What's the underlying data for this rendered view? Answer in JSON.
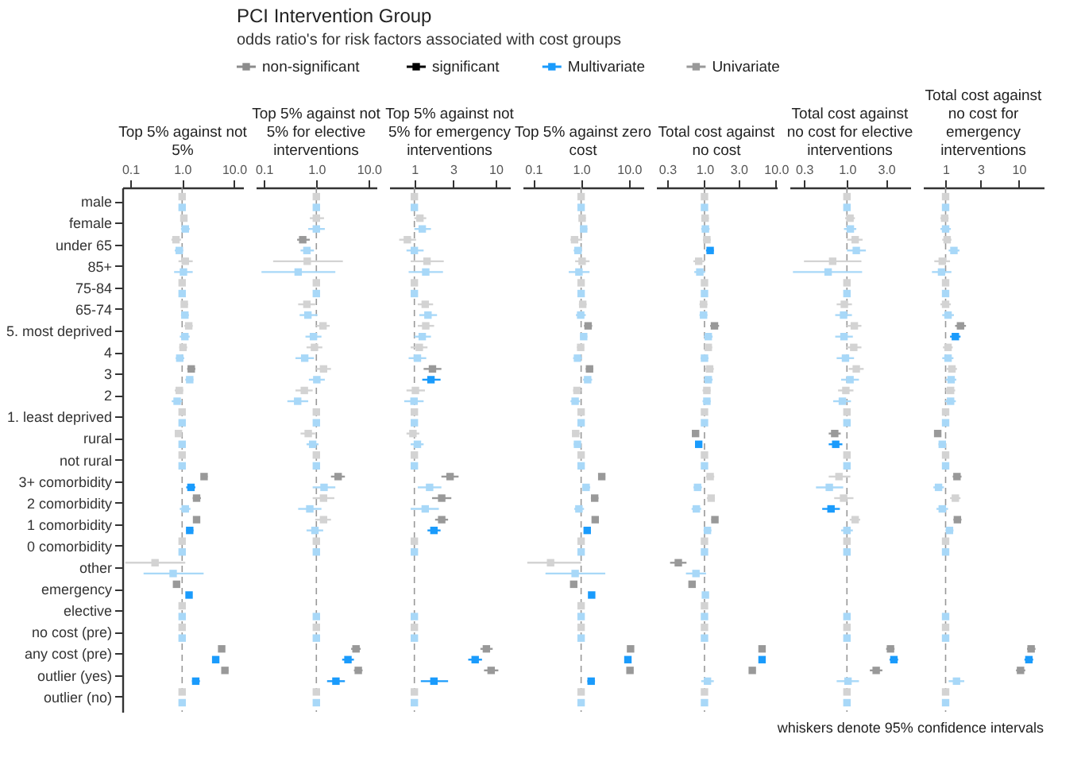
{
  "chart_data": [
    {
      "type": "other",
      "title": "PCI Intervention Group",
      "subtitle": "odds ratio's for risk factors associated with cost groups",
      "annotations": [
        "non-significant",
        "significant"
      ]
    },
    {
      "type": "scatter",
      "title": "Top 5% against not 5%",
      "orientation": "horizontal",
      "log": "x",
      "marker": "square",
      "legend": "top",
      "categories": [
        "male",
        "female",
        "under 65",
        "85+",
        "75-84",
        "65-74",
        "5. most deprived",
        "4",
        "3",
        "2",
        "1. least deprived",
        "rural",
        "not rural",
        "3+ comorbidity",
        "2 comorbidity",
        "1 comorbidity",
        "0 comorbidity",
        "other",
        "emergency",
        "elective",
        "no cost (pre)",
        "any cost (pre)",
        "outlier  (yes)",
        "outlier  (no)"
      ],
      "xlim": [
        0.07,
        15
      ],
      "xticks": [
        {
          "value": 0.1,
          "label": "0.1"
        },
        {
          "value": 1,
          "label": "1.0"
        },
        {
          "value": 10,
          "label": "10.0"
        }
      ],
      "ref_lines": [
        {
          "axis": "x",
          "value": 1,
          "color": "#999999",
          "line_style": "dashed"
        }
      ],
      "series": [
        {
          "name": "Multivariate",
          "color": "#1a9bfc",
          "values": [
            1,
            1.15,
            0.88,
            1.06,
            1,
            1.13,
            1.13,
            0.9,
            1.4,
            0.8,
            1,
            1.0,
            1,
            1.48,
            1.15,
            1.4,
            1,
            0.67,
            1.36,
            1,
            1,
            4.45,
            1.83,
            1
          ],
          "errors": [
            null,
            [
              0.95,
              1.4
            ],
            [
              0.72,
              1.05
            ],
            [
              0.7,
              1.6
            ],
            null,
            [
              0.95,
              1.35
            ],
            [
              0.9,
              1.4
            ],
            [
              0.75,
              1.1
            ],
            [
              1.15,
              1.65
            ],
            [
              0.63,
              1.0
            ],
            null,
            [
              0.88,
              1.15
            ],
            null,
            [
              1.2,
              1.8
            ],
            [
              0.9,
              1.45
            ],
            [
              1.2,
              1.65
            ],
            null,
            [
              0.18,
              2.6
            ],
            [
              1.2,
              1.55
            ],
            null,
            null,
            [
              3.8,
              5.2
            ],
            [
              1.55,
              2.2
            ],
            null
          ],
          "colors": [
            "#a8d8f8",
            "#a8d8f8",
            "#a8d8f8",
            "#a8d8f8",
            "#a8d8f8",
            "#a8d8f8",
            "#a8d8f8",
            "#a8d8f8",
            "#a8d8f8",
            "#a8d8f8",
            "#a8d8f8",
            "#a8d8f8",
            "#a8d8f8",
            "#1a9bfc",
            "#a8d8f8",
            "#1a9bfc",
            "#a8d8f8",
            "#a8d8f8",
            "#1a9bfc",
            "#a8d8f8",
            "#a8d8f8",
            "#1a9bfc",
            "#1a9bfc",
            "#a8d8f8"
          ]
        },
        {
          "name": "Univariate",
          "color": "#999999",
          "values": [
            1,
            1.08,
            0.76,
            1.15,
            1,
            1.1,
            1.34,
            1.04,
            1.5,
            0.88,
            1,
            0.85,
            1,
            2.65,
            1.9,
            1.9,
            1,
            0.3,
            0.78,
            1,
            1,
            5.8,
            6.7,
            1
          ],
          "errors": [
            null,
            [
              0.98,
              1.25
            ],
            [
              0.62,
              0.95
            ],
            [
              0.85,
              1.6
            ],
            null,
            [
              0.95,
              1.3
            ],
            [
              1.1,
              1.6
            ],
            [
              0.88,
              1.25
            ],
            [
              1.25,
              1.8
            ],
            [
              0.72,
              1.05
            ],
            null,
            [
              0.75,
              0.97
            ],
            null,
            [
              2.3,
              3.1
            ],
            [
              1.6,
              2.3
            ],
            [
              1.65,
              2.2
            ],
            null,
            [
              0.08,
              1.15
            ],
            [
              0.7,
              0.88
            ],
            null,
            null,
            [
              5.1,
              6.6
            ],
            [
              5.8,
              7.8
            ],
            null
          ],
          "colors": [
            "#d3d3d3",
            "#d3d3d3",
            "#d3d3d3",
            "#d3d3d3",
            "#d3d3d3",
            "#d3d3d3",
            "#d3d3d3",
            "#d3d3d3",
            "#999999",
            "#d3d3d3",
            "#d3d3d3",
            "#d3d3d3",
            "#d3d3d3",
            "#999999",
            "#999999",
            "#999999",
            "#d3d3d3",
            "#d3d3d3",
            "#999999",
            "#d3d3d3",
            "#d3d3d3",
            "#999999",
            "#999999",
            "#d3d3d3"
          ]
        }
      ]
    },
    {
      "type": "scatter",
      "title": "Top 5% against not 5% for elective interventions",
      "orientation": "horizontal",
      "log": "x",
      "marker": "square",
      "tick_labels": "x",
      "categories": [
        "male",
        "female",
        "under 65",
        "85+",
        "75-84",
        "65-74",
        "5. most deprived",
        "4",
        "3",
        "2",
        "1. least deprived",
        "rural",
        "not rural",
        "3+ comorbidity",
        "2 comorbidity",
        "1 comorbidity",
        "0 comorbidity",
        "other",
        "emergency",
        "elective",
        "no cost (pre)",
        "any cost (pre)",
        "outlier  (yes)",
        "outlier  (no)"
      ],
      "xlim": [
        0.07,
        14
      ],
      "xticks": [
        {
          "value": 0.1,
          "label": "0.1"
        },
        {
          "value": 1,
          "label": "1.0"
        },
        {
          "value": 10,
          "label": "10.0"
        }
      ],
      "ref_lines": [
        {
          "axis": "x",
          "value": 1,
          "color": "#999999",
          "line_style": "dashed"
        }
      ],
      "series": [
        {
          "values": [
            1,
            1.0,
            0.66,
            0.45,
            1,
            0.69,
            0.88,
            0.6,
            1.02,
            0.44,
            1,
            0.85,
            1,
            1.4,
            0.75,
            0.94,
            1,
            null,
            null,
            1,
            1,
            4.0,
            2.36,
            1
          ],
          "errors": [
            null,
            [
              0.7,
              1.45
            ],
            [
              0.5,
              0.9
            ],
            [
              0.09,
              2.3
            ],
            null,
            [
              0.48,
              1.05
            ],
            [
              0.62,
              1.25
            ],
            [
              0.4,
              0.9
            ],
            [
              0.72,
              1.45
            ],
            [
              0.28,
              0.7
            ],
            null,
            [
              0.65,
              1.1
            ],
            null,
            [
              0.85,
              2.3
            ],
            [
              0.45,
              1.25
            ],
            [
              0.65,
              1.35
            ],
            null,
            null,
            null,
            null,
            null,
            [
              3.1,
              5.2
            ],
            [
              1.6,
              3.5
            ],
            null
          ],
          "colors": [
            "#a8d8f8",
            "#a8d8f8",
            "#a8d8f8",
            "#a8d8f8",
            "#a8d8f8",
            "#a8d8f8",
            "#a8d8f8",
            "#a8d8f8",
            "#a8d8f8",
            "#a8d8f8",
            "#a8d8f8",
            "#a8d8f8",
            "#a8d8f8",
            "#a8d8f8",
            "#a8d8f8",
            "#a8d8f8",
            "#a8d8f8",
            "#a8d8f8",
            "#a8d8f8",
            "#a8d8f8",
            "#a8d8f8",
            "#1a9bfc",
            "#1a9bfc",
            "#a8d8f8"
          ]
        },
        {
          "values": [
            1,
            1.0,
            0.55,
            0.67,
            1,
            0.66,
            1.34,
            0.92,
            1.37,
            0.59,
            1,
            0.7,
            1,
            2.6,
            1.37,
            1.37,
            1,
            null,
            null,
            null,
            1,
            5.7,
            6.3,
            1
          ],
          "errors": [
            null,
            [
              0.75,
              1.4
            ],
            [
              0.43,
              0.75
            ],
            [
              0.15,
              3.2
            ],
            null,
            [
              0.45,
              0.95
            ],
            [
              1.0,
              1.8
            ],
            [
              0.65,
              1.3
            ],
            [
              1.0,
              1.9
            ],
            [
              0.4,
              0.85
            ],
            null,
            [
              0.5,
              0.95
            ],
            null,
            [
              1.9,
              3.5
            ],
            [
              0.85,
              2.2
            ],
            [
              0.95,
              1.9
            ],
            null,
            null,
            null,
            null,
            null,
            [
              4.6,
              7.0
            ],
            [
              5.2,
              7.6
            ],
            null
          ],
          "colors": [
            "#d3d3d3",
            "#d3d3d3",
            "#999999",
            "#d3d3d3",
            "#d3d3d3",
            "#d3d3d3",
            "#d3d3d3",
            "#d3d3d3",
            "#d3d3d3",
            "#d3d3d3",
            "#d3d3d3",
            "#d3d3d3",
            "#d3d3d3",
            "#999999",
            "#d3d3d3",
            "#d3d3d3",
            "#d3d3d3",
            "#d3d3d3",
            "#d3d3d3",
            "#d3d3d3",
            "#d3d3d3",
            "#999999",
            "#999999",
            "#d3d3d3"
          ]
        }
      ]
    },
    {
      "type": "scatter",
      "title": "Top 5% against not 5% for emergency interventions",
      "orientation": "horizontal",
      "log": "x",
      "marker": "square",
      "tick_labels": "x",
      "categories": [
        "male",
        "female",
        "under 65",
        "85+",
        "75-84",
        "65-74",
        "5. most deprived",
        "4",
        "3",
        "2",
        "1. least deprived",
        "rural",
        "not rural",
        "3+ comorbidity",
        "2 comorbidity",
        "1 comorbidity",
        "0 comorbidity",
        "other",
        "emergency",
        "elective",
        "no cost (pre)",
        "any cost (pre)",
        "outlier  (yes)",
        "outlier  (no)"
      ],
      "xlim": [
        0.49,
        15
      ],
      "xticks": [
        1,
        3,
        10
      ],
      "ref_lines": [
        {
          "axis": "x",
          "value": 1,
          "color": "#999999",
          "line_style": "dashed"
        }
      ],
      "series": [
        {
          "values": [
            1,
            1.25,
            1.0,
            1.38,
            1,
            1.47,
            1.25,
            1.09,
            1.6,
            0.99,
            1,
            1.09,
            1,
            1.54,
            1.36,
            1.74,
            1,
            null,
            null,
            1,
            1,
            5.6,
            1.74,
            1
          ],
          "errors": [
            null,
            [
              1.0,
              1.6
            ],
            [
              0.8,
              1.3
            ],
            [
              0.85,
              2.25
            ],
            null,
            [
              1.15,
              1.9
            ],
            [
              1.0,
              1.6
            ],
            [
              0.85,
              1.4
            ],
            [
              1.25,
              2.1
            ],
            [
              0.75,
              1.3
            ],
            null,
            [
              0.9,
              1.3
            ],
            null,
            [
              1.1,
              2.15
            ],
            [
              0.9,
              2.0
            ],
            [
              1.45,
              2.1
            ],
            null,
            null,
            null,
            null,
            null,
            [
              4.6,
              6.8
            ],
            [
              1.2,
              2.6
            ],
            null
          ],
          "colors": [
            "#a8d8f8",
            "#a8d8f8",
            "#a8d8f8",
            "#a8d8f8",
            "#a8d8f8",
            "#a8d8f8",
            "#a8d8f8",
            "#a8d8f8",
            "#1a9bfc",
            "#a8d8f8",
            "#a8d8f8",
            "#a8d8f8",
            "#a8d8f8",
            "#a8d8f8",
            "#a8d8f8",
            "#1a9bfc",
            "#a8d8f8",
            "#a8d8f8",
            "#a8d8f8",
            "#a8d8f8",
            "#a8d8f8",
            "#1a9bfc",
            "#1a9bfc",
            "#a8d8f8"
          ]
        },
        {
          "values": [
            1,
            1.17,
            0.82,
            1.43,
            1,
            1.36,
            1.38,
            1.15,
            1.67,
            1.03,
            1,
            0.96,
            1,
            2.75,
            2.17,
            2.17,
            1,
            null,
            null,
            null,
            1,
            7.7,
            8.8,
            1
          ],
          "errors": [
            null,
            [
              1.0,
              1.4
            ],
            [
              0.65,
              1.05
            ],
            [
              0.9,
              2.3
            ],
            null,
            [
              1.1,
              1.7
            ],
            [
              1.1,
              1.75
            ],
            [
              0.9,
              1.45
            ],
            [
              1.3,
              2.15
            ],
            [
              0.8,
              1.35
            ],
            null,
            [
              0.8,
              1.15
            ],
            null,
            [
              2.15,
              3.5
            ],
            [
              1.65,
              2.85
            ],
            [
              1.8,
              2.6
            ],
            null,
            null,
            null,
            null,
            null,
            [
              6.5,
              9.2
            ],
            [
              7.2,
              10.8
            ],
            null
          ],
          "colors": [
            "#d3d3d3",
            "#d3d3d3",
            "#d3d3d3",
            "#d3d3d3",
            "#d3d3d3",
            "#d3d3d3",
            "#d3d3d3",
            "#d3d3d3",
            "#999999",
            "#d3d3d3",
            "#d3d3d3",
            "#d3d3d3",
            "#d3d3d3",
            "#999999",
            "#999999",
            "#999999",
            "#d3d3d3",
            "#d3d3d3",
            "#d3d3d3",
            "#d3d3d3",
            "#d3d3d3",
            "#999999",
            "#999999",
            "#d3d3d3"
          ]
        }
      ]
    },
    {
      "type": "scatter",
      "title": "Top 5% against zero cost",
      "orientation": "horizontal",
      "log": "x",
      "marker": "square",
      "tick_labels": "x",
      "categories": [
        "male",
        "female",
        "under 65",
        "85+",
        "75-84",
        "65-74",
        "5. most deprived",
        "4",
        "3",
        "2",
        "1. least deprived",
        "rural",
        "not rural",
        "3+ comorbidity",
        "2 comorbidity",
        "1 comorbidity",
        "0 comorbidity",
        "other",
        "emergency",
        "elective",
        "no cost (pre)",
        "any cost (pre)",
        "outlier  (yes)",
        "outlier  (no)"
      ],
      "xlim": [
        0.06,
        20
      ],
      "xticks": [
        {
          "value": 0.1,
          "label": "0.1"
        },
        {
          "value": 1,
          "label": "1.0"
        },
        {
          "value": 10,
          "label": "10.0"
        }
      ],
      "ref_lines": [
        {
          "axis": "x",
          "value": 1,
          "color": "#999999",
          "line_style": "dashed"
        }
      ],
      "series": [
        {
          "values": [
            1,
            1.13,
            0.86,
            0.9,
            1,
            0.98,
            1.13,
            0.84,
            1.37,
            0.75,
            1,
            0.84,
            1,
            1.27,
            0.9,
            1.34,
            1,
            0.75,
            1.66,
            1,
            1,
            9.5,
            1.62,
            1
          ],
          "errors": [
            null,
            [
              0.95,
              1.35
            ],
            [
              0.7,
              1.05
            ],
            [
              0.55,
              1.5
            ],
            null,
            [
              0.78,
              1.25
            ],
            [
              0.95,
              1.35
            ],
            [
              0.68,
              1.05
            ],
            [
              1.1,
              1.7
            ],
            [
              0.6,
              0.95
            ],
            null,
            [
              0.7,
              1.0
            ],
            null,
            [
              1.05,
              1.55
            ],
            [
              0.72,
              1.15
            ],
            [
              1.15,
              1.55
            ],
            null,
            [
              0.18,
              3.2
            ],
            [
              1.45,
              1.9
            ],
            null,
            null,
            [
              8.2,
              11
            ],
            [
              1.35,
              1.95
            ],
            null
          ],
          "colors": [
            "#a8d8f8",
            "#a8d8f8",
            "#a8d8f8",
            "#a8d8f8",
            "#a8d8f8",
            "#a8d8f8",
            "#a8d8f8",
            "#a8d8f8",
            "#a8d8f8",
            "#a8d8f8",
            "#a8d8f8",
            "#a8d8f8",
            "#a8d8f8",
            "#a8d8f8",
            "#a8d8f8",
            "#1a9bfc",
            "#a8d8f8",
            "#a8d8f8",
            "#1a9bfc",
            "#a8d8f8",
            "#a8d8f8",
            "#1a9bfc",
            "#1a9bfc",
            "#a8d8f8"
          ]
        },
        {
          "values": [
            1,
            1.05,
            0.73,
            1.05,
            1,
            1.08,
            1.4,
            0.98,
            1.5,
            0.82,
            1,
            0.77,
            1,
            2.7,
            1.92,
            1.97,
            1,
            0.23,
            0.7,
            1,
            1,
            10.8,
            10.5,
            1
          ],
          "errors": [
            null,
            [
              0.9,
              1.25
            ],
            [
              0.6,
              1.05
            ],
            [
              0.75,
              1.5
            ],
            null,
            [
              0.9,
              1.3
            ],
            [
              1.15,
              1.7
            ],
            [
              0.82,
              1.15
            ],
            [
              1.25,
              1.8
            ],
            [
              0.68,
              1.0
            ],
            null,
            [
              0.65,
              0.95
            ],
            null,
            [
              2.3,
              3.2
            ],
            [
              1.6,
              2.3
            ],
            [
              1.7,
              2.3
            ],
            null,
            [
              0.075,
              1.0
            ],
            [
              0.62,
              0.8
            ],
            null,
            null,
            [
              9.3,
              12.5
            ],
            [
              9.0,
              12.3
            ],
            null
          ],
          "colors": [
            "#d3d3d3",
            "#d3d3d3",
            "#d3d3d3",
            "#d3d3d3",
            "#d3d3d3",
            "#d3d3d3",
            "#999999",
            "#d3d3d3",
            "#999999",
            "#d3d3d3",
            "#d3d3d3",
            "#d3d3d3",
            "#d3d3d3",
            "#999999",
            "#999999",
            "#999999",
            "#d3d3d3",
            "#d3d3d3",
            "#999999",
            "#d3d3d3",
            "#d3d3d3",
            "#999999",
            "#999999",
            "#d3d3d3"
          ]
        }
      ]
    },
    {
      "type": "scatter",
      "title": "Total cost against no cost",
      "orientation": "horizontal",
      "log": "x",
      "marker": "square",
      "tick_labels": "x",
      "categories": [
        "male",
        "female",
        "under 65",
        "85+",
        "75-84",
        "65-74",
        "5. most deprived",
        "4",
        "3",
        "2",
        "1. least deprived",
        "rural",
        "not rural",
        "3+ comorbidity",
        "2 comorbidity",
        "1 comorbidity",
        "0 comorbidity",
        "other",
        "emergency",
        "elective",
        "no cost (pre)",
        "any cost (pre)",
        "outlier  (yes)",
        "outlier  (no)"
      ],
      "xlim": [
        0.21,
        10.3
      ],
      "xticks": [
        {
          "value": 0.3,
          "label": "0.3"
        },
        {
          "value": 1,
          "label": "1.0"
        },
        {
          "value": 3,
          "label": "3.0"
        },
        {
          "value": 10,
          "label": "10.0"
        }
      ],
      "ref_lines": [
        {
          "axis": "x",
          "value": 1,
          "color": "#999999",
          "line_style": "dashed"
        }
      ],
      "series": [
        {
          "values": [
            1,
            1.03,
            1.2,
            0.86,
            1,
            0.97,
            1.13,
            1.0,
            1.13,
            1.08,
            1,
            0.83,
            1,
            0.8,
            0.77,
            1.1,
            1,
            0.76,
            1.03,
            1,
            1,
            6.4,
            1.1,
            1
          ],
          "errors": [
            null,
            [
              0.9,
              1.18
            ],
            [
              1.05,
              1.35
            ],
            [
              0.72,
              1.02
            ],
            null,
            [
              0.85,
              1.1
            ],
            [
              0.98,
              1.3
            ],
            [
              0.88,
              1.14
            ],
            [
              0.98,
              1.3
            ],
            [
              0.94,
              1.22
            ],
            null,
            [
              0.75,
              0.92
            ],
            null,
            [
              0.7,
              0.92
            ],
            [
              0.66,
              0.9
            ],
            [
              0.97,
              1.25
            ],
            null,
            [
              0.55,
              1.05
            ],
            [
              0.93,
              1.14
            ],
            null,
            null,
            [
              5.8,
              7.0
            ],
            [
              0.9,
              1.35
            ],
            null
          ],
          "colors": [
            "#a8d8f8",
            "#a8d8f8",
            "#1a9bfc",
            "#a8d8f8",
            "#a8d8f8",
            "#a8d8f8",
            "#a8d8f8",
            "#a8d8f8",
            "#a8d8f8",
            "#a8d8f8",
            "#a8d8f8",
            "#1a9bfc",
            "#a8d8f8",
            "#a8d8f8",
            "#a8d8f8",
            "#a8d8f8",
            "#a8d8f8",
            "#a8d8f8",
            "#a8d8f8",
            "#a8d8f8",
            "#a8d8f8",
            "#1a9bfc",
            "#a8d8f8",
            "#a8d8f8"
          ]
        },
        {
          "values": [
            1,
            1.02,
            1.08,
            0.83,
            1,
            0.97,
            1.38,
            1.13,
            1.18,
            1.08,
            1,
            0.75,
            1,
            1.2,
            1.24,
            1.4,
            1,
            0.43,
            0.67,
            1,
            1,
            6.4,
            4.67,
            1
          ],
          "errors": [
            null,
            [
              0.9,
              1.15
            ],
            [
              0.95,
              1.22
            ],
            [
              0.7,
              1.0
            ],
            null,
            [
              0.85,
              1.1
            ],
            [
              1.2,
              1.6
            ],
            [
              1.0,
              1.28
            ],
            [
              1.03,
              1.35
            ],
            [
              0.94,
              1.22
            ],
            null,
            [
              0.68,
              0.82
            ],
            null,
            [
              1.05,
              1.37
            ],
            [
              1.08,
              1.4
            ],
            [
              1.25,
              1.55
            ],
            null,
            [
              0.33,
              0.56
            ],
            [
              0.6,
              0.74
            ],
            null,
            null,
            [
              5.9,
              7.0
            ],
            [
              4.2,
              5.2
            ],
            null
          ],
          "colors": [
            "#d3d3d3",
            "#d3d3d3",
            "#d3d3d3",
            "#d3d3d3",
            "#d3d3d3",
            "#d3d3d3",
            "#999999",
            "#d3d3d3",
            "#d3d3d3",
            "#d3d3d3",
            "#d3d3d3",
            "#999999",
            "#d3d3d3",
            "#d3d3d3",
            "#d3d3d3",
            "#999999",
            "#d3d3d3",
            "#999999",
            "#999999",
            "#d3d3d3",
            "#d3d3d3",
            "#999999",
            "#999999",
            "#d3d3d3"
          ]
        }
      ]
    },
    {
      "type": "scatter",
      "title": "Total cost against no cost for elective interventions",
      "orientation": "horizontal",
      "log": "x",
      "marker": "square",
      "tick_labels": "x",
      "categories": [
        "male",
        "female",
        "under 65",
        "85+",
        "75-84",
        "65-74",
        "5. most deprived",
        "4",
        "3",
        "2",
        "1. least deprived",
        "rural",
        "not rural",
        "3+ comorbidity",
        "2 comorbidity",
        "1 comorbidity",
        "0 comorbidity",
        "other",
        "emergency",
        "elective",
        "no cost (pre)",
        "any cost (pre)",
        "outlier  (yes)",
        "outlier  (no)"
      ],
      "xlim": [
        0.2,
        5.9
      ],
      "xticks": [
        {
          "value": 0.3,
          "label": "0.3"
        },
        {
          "value": 1,
          "label": "1.0"
        },
        {
          "value": 3,
          "label": "3.0"
        }
      ],
      "ref_lines": [
        {
          "axis": "x",
          "value": 1,
          "color": "#999999",
          "line_style": "dashed"
        }
      ],
      "series": [
        {
          "values": [
            1,
            1.1,
            1.3,
            0.59,
            1,
            0.91,
            0.92,
            0.96,
            1.09,
            0.88,
            1,
            0.73,
            1,
            0.61,
            0.64,
            1.0,
            1,
            null,
            null,
            1,
            1,
            3.73,
            1.03,
            1
          ],
          "errors": [
            null,
            [
              0.92,
              1.3
            ],
            [
              1.0,
              1.7
            ],
            [
              0.22,
              1.53
            ],
            null,
            [
              0.72,
              1.15
            ],
            [
              0.72,
              1.18
            ],
            [
              0.75,
              1.22
            ],
            [
              0.85,
              1.4
            ],
            [
              0.68,
              1.12
            ],
            null,
            [
              0.6,
              0.88
            ],
            null,
            [
              0.42,
              0.9
            ],
            [
              0.5,
              0.82
            ],
            [
              0.85,
              1.18
            ],
            null,
            null,
            null,
            null,
            null,
            [
              3.3,
              4.2
            ],
            [
              0.75,
              1.4
            ],
            null
          ],
          "colors": [
            "#a8d8f8",
            "#a8d8f8",
            "#a8d8f8",
            "#a8d8f8",
            "#a8d8f8",
            "#a8d8f8",
            "#a8d8f8",
            "#a8d8f8",
            "#a8d8f8",
            "#a8d8f8",
            "#a8d8f8",
            "#1a9bfc",
            "#a8d8f8",
            "#a8d8f8",
            "#1a9bfc",
            "#a8d8f8",
            "#a8d8f8",
            "#a8d8f8",
            "#a8d8f8",
            "#a8d8f8",
            "#a8d8f8",
            "#1a9bfc",
            "#a8d8f8",
            "#a8d8f8"
          ]
        },
        {
          "values": [
            1,
            1.09,
            1.26,
            0.67,
            1,
            0.93,
            1.23,
            1.21,
            1.3,
            0.97,
            1,
            0.71,
            1,
            0.8,
            0.91,
            1.26,
            1,
            null,
            null,
            null,
            1,
            3.39,
            2.27,
            1
          ],
          "errors": [
            null,
            [
              0.95,
              1.25
            ],
            [
              1.0,
              1.55
            ],
            [
              0.3,
              1.5
            ],
            null,
            [
              0.75,
              1.15
            ],
            [
              1.0,
              1.5
            ],
            [
              0.98,
              1.5
            ],
            [
              1.05,
              1.6
            ],
            [
              0.78,
              1.2
            ],
            null,
            [
              0.6,
              0.84
            ],
            null,
            [
              0.6,
              1.1
            ],
            [
              0.7,
              1.2
            ],
            [
              1.08,
              1.45
            ],
            null,
            null,
            null,
            null,
            null,
            [
              3.0,
              3.8
            ],
            [
              1.9,
              2.7
            ],
            null
          ],
          "colors": [
            "#d3d3d3",
            "#d3d3d3",
            "#d3d3d3",
            "#d3d3d3",
            "#d3d3d3",
            "#d3d3d3",
            "#d3d3d3",
            "#d3d3d3",
            "#d3d3d3",
            "#d3d3d3",
            "#d3d3d3",
            "#999999",
            "#d3d3d3",
            "#d3d3d3",
            "#d3d3d3",
            "#d3d3d3",
            "#d3d3d3",
            "#d3d3d3",
            "#d3d3d3",
            "#d3d3d3",
            "#d3d3d3",
            "#999999",
            "#999999",
            "#d3d3d3"
          ]
        }
      ]
    },
    {
      "type": "scatter",
      "title": "Total cost against no cost for emergency interventions",
      "orientation": "horizontal",
      "log": "x",
      "marker": "square",
      "tick_labels": "x",
      "categories": [
        "male",
        "female",
        "under 65",
        "85+",
        "75-84",
        "65-74",
        "5. most deprived",
        "4",
        "3",
        "2",
        "1. least deprived",
        "rural",
        "not rural",
        "3+ comorbidity",
        "2 comorbidity",
        "1 comorbidity",
        "0 comorbidity",
        "other",
        "emergency",
        "elective",
        "no cost (pre)",
        "any cost (pre)",
        "outlier  (yes)",
        "outlier  (no)"
      ],
      "xlim": [
        0.49,
        22
      ],
      "xticks": [
        1,
        3,
        10
      ],
      "ref_lines": [
        {
          "axis": "x",
          "value": 1,
          "color": "#999999",
          "line_style": "dashed"
        }
      ],
      "annotations": [
        "whiskers denote 95% confidence intervals"
      ],
      "series": [
        {
          "values": [
            1,
            1.0,
            1.3,
            0.88,
            1,
            1.08,
            1.36,
            1.08,
            1.19,
            1.17,
            1,
            0.9,
            1,
            0.8,
            0.9,
            1.13,
            1,
            null,
            null,
            1,
            1,
            13.8,
            1.41,
            1
          ],
          "errors": [
            null,
            [
              0.85,
              1.18
            ],
            [
              1.1,
              1.55
            ],
            [
              0.65,
              1.2
            ],
            null,
            [
              0.9,
              1.3
            ],
            [
              1.15,
              1.6
            ],
            [
              0.9,
              1.28
            ],
            [
              1.0,
              1.4
            ],
            [
              0.98,
              1.38
            ],
            null,
            [
              0.8,
              1.0
            ],
            null,
            [
              0.68,
              0.95
            ],
            [
              0.75,
              1.08
            ],
            [
              1.0,
              1.28
            ],
            null,
            null,
            null,
            null,
            null,
            [
              12,
              15.8
            ],
            [
              1.1,
              1.8
            ],
            null
          ],
          "colors": [
            "#a8d8f8",
            "#a8d8f8",
            "#a8d8f8",
            "#a8d8f8",
            "#a8d8f8",
            "#a8d8f8",
            "#1a9bfc",
            "#a8d8f8",
            "#a8d8f8",
            "#a8d8f8",
            "#a8d8f8",
            "#a8d8f8",
            "#a8d8f8",
            "#a8d8f8",
            "#a8d8f8",
            "#a8d8f8",
            "#a8d8f8",
            "#a8d8f8",
            "#a8d8f8",
            "#a8d8f8",
            "#a8d8f8",
            "#1a9bfc",
            "#a8d8f8",
            "#a8d8f8"
          ]
        },
        {
          "values": [
            1,
            0.97,
            1.05,
            0.9,
            1,
            1.0,
            1.6,
            1.08,
            1.22,
            1.17,
            1,
            0.78,
            1,
            1.43,
            1.36,
            1.45,
            1,
            null,
            null,
            null,
            1,
            14.8,
            10.6,
            1
          ],
          "errors": [
            null,
            [
              0.85,
              1.1
            ],
            [
              0.9,
              1.2
            ],
            [
              0.7,
              1.15
            ],
            null,
            [
              0.85,
              1.18
            ],
            [
              1.35,
              1.9
            ],
            [
              0.92,
              1.25
            ],
            [
              1.03,
              1.43
            ],
            [
              1.0,
              1.35
            ],
            null,
            [
              0.7,
              0.86
            ],
            null,
            [
              1.25,
              1.65
            ],
            [
              1.15,
              1.6
            ],
            [
              1.28,
              1.65
            ],
            null,
            null,
            null,
            null,
            null,
            [
              13,
              17
            ],
            [
              9.2,
              12.3
            ],
            null
          ],
          "colors": [
            "#d3d3d3",
            "#d3d3d3",
            "#d3d3d3",
            "#d3d3d3",
            "#d3d3d3",
            "#d3d3d3",
            "#999999",
            "#d3d3d3",
            "#d3d3d3",
            "#d3d3d3",
            "#d3d3d3",
            "#999999",
            "#d3d3d3",
            "#999999",
            "#d3d3d3",
            "#999999",
            "#d3d3d3",
            "#d3d3d3",
            "#d3d3d3",
            "#d3d3d3",
            "#d3d3d3",
            "#999999",
            "#999999",
            "#d3d3d3"
          ]
        }
      ]
    }
  ]
}
